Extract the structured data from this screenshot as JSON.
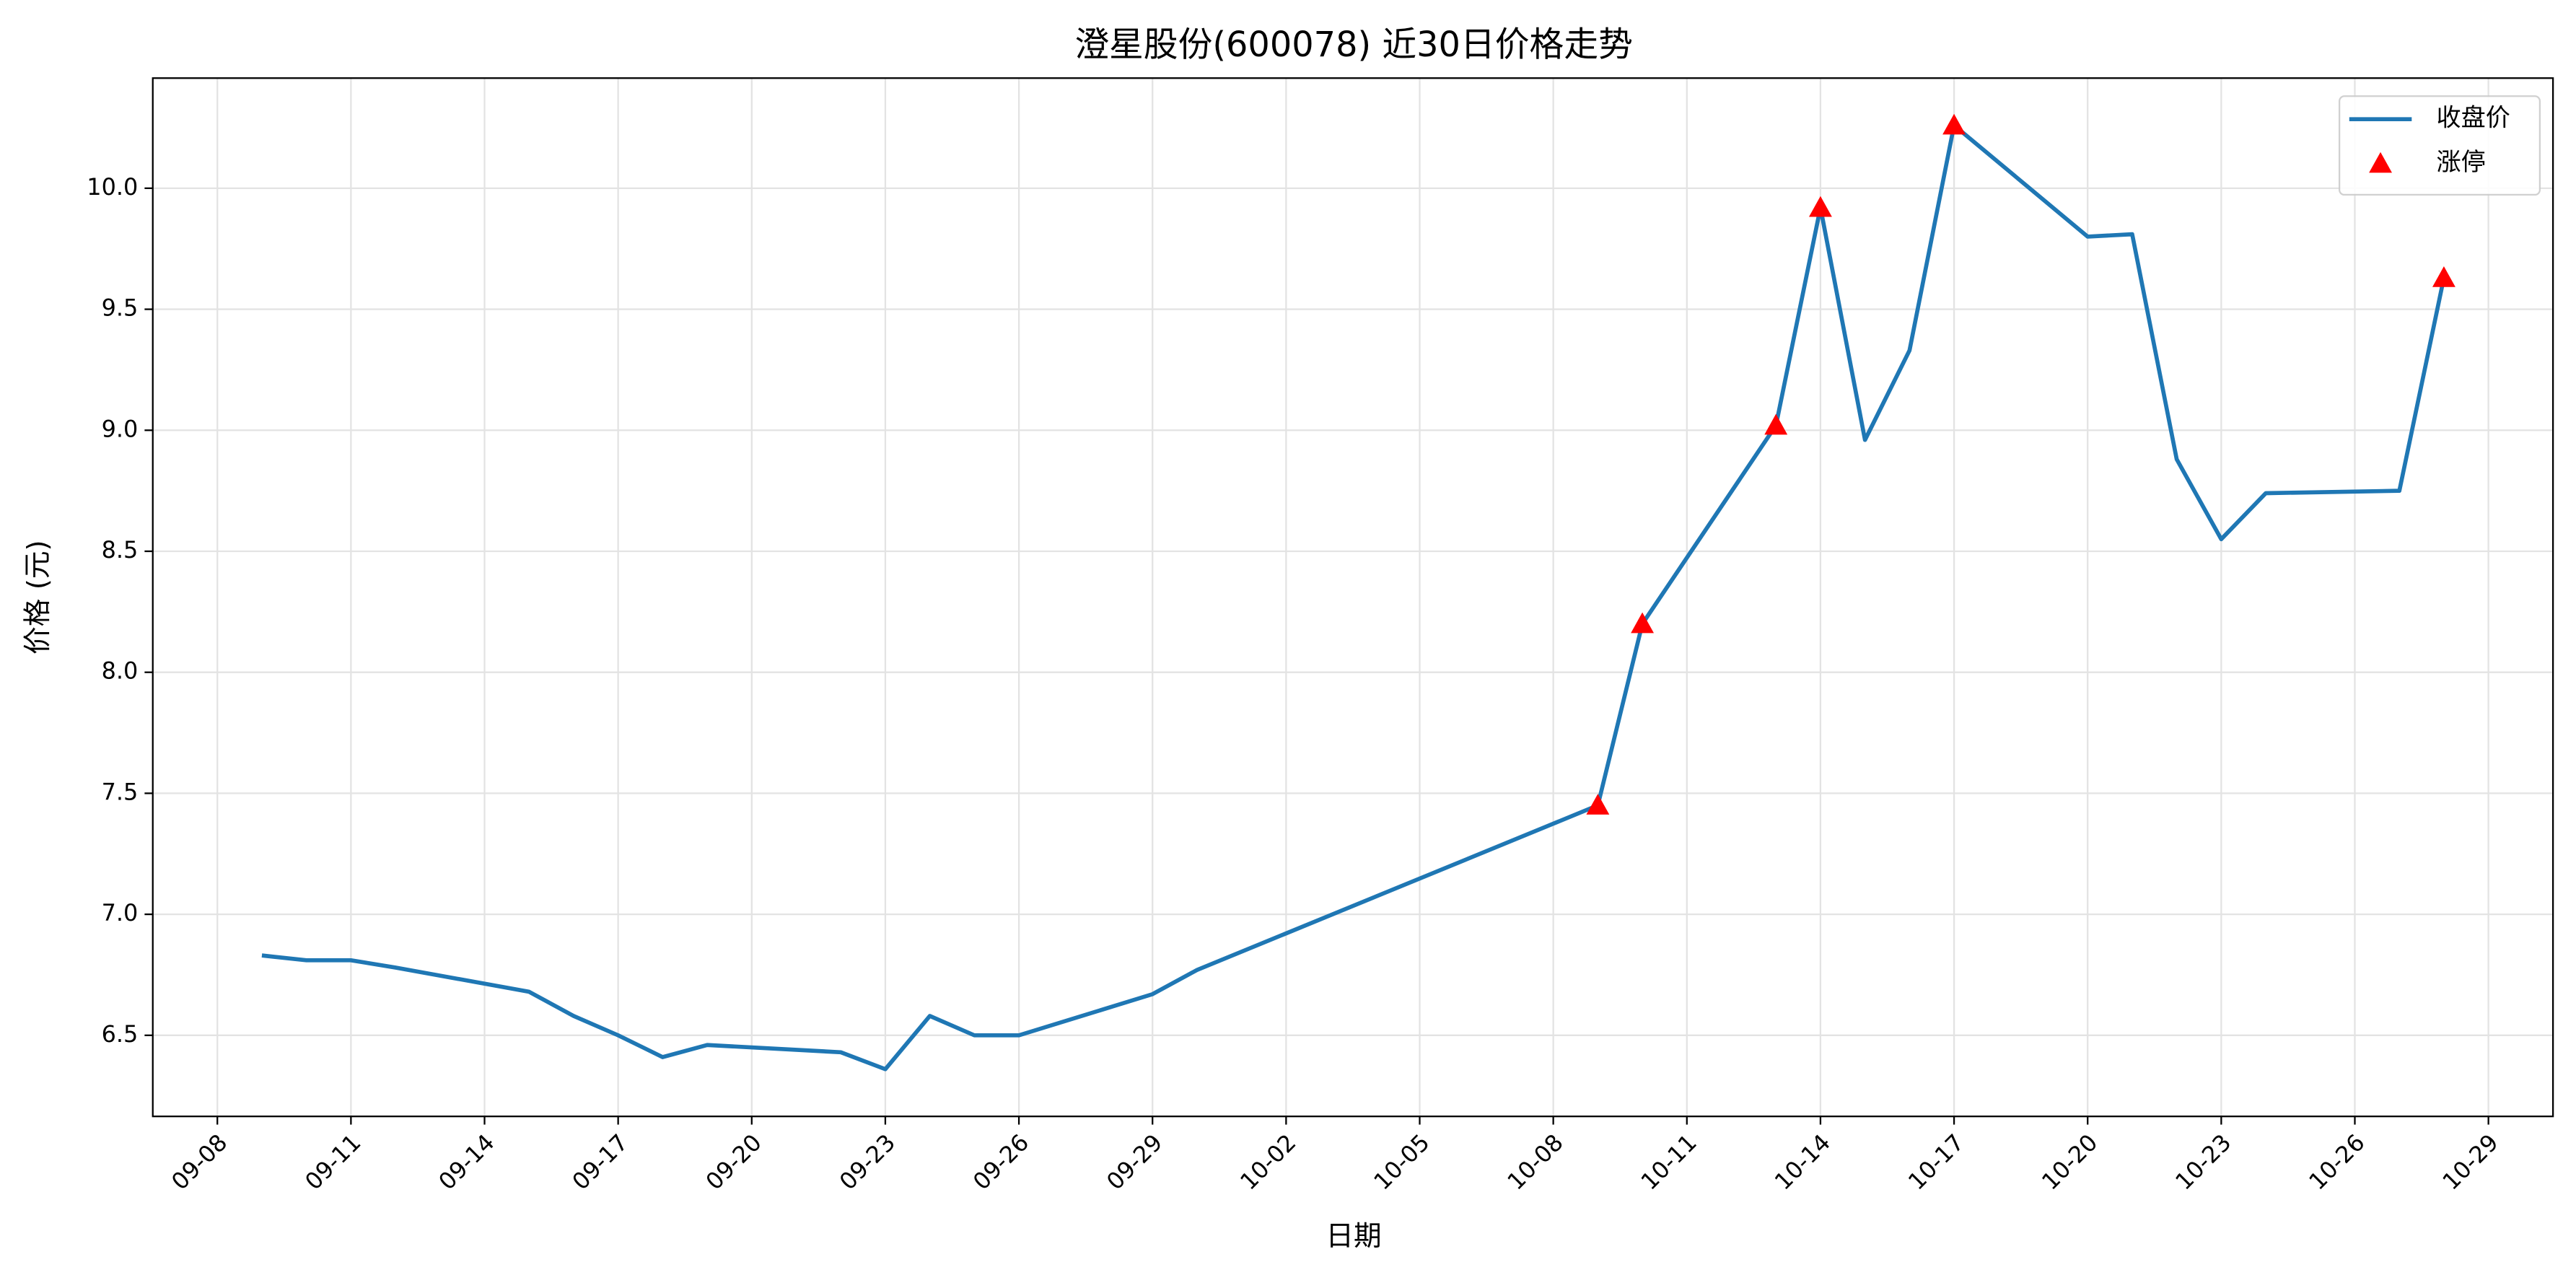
{
  "chart_data": {
    "type": "line",
    "title": "澄星股份(600078) 近30日价格走势",
    "x_label": "日期",
    "y_label": "价格 (元)",
    "x": [
      "09-09",
      "09-10",
      "09-11",
      "09-12",
      "09-15",
      "09-16",
      "09-17",
      "09-18",
      "09-19",
      "09-22",
      "09-23",
      "09-24",
      "09-25",
      "09-26",
      "09-29",
      "09-30",
      "10-09",
      "10-10",
      "10-13",
      "10-14",
      "10-15",
      "10-16",
      "10-17",
      "10-20",
      "10-21",
      "10-22",
      "10-23",
      "10-24",
      "10-27",
      "10-28"
    ],
    "series": [
      {
        "name": "收盘价",
        "type": "line",
        "color": "#1f77b4",
        "values": [
          6.83,
          6.81,
          6.81,
          6.78,
          6.68,
          6.58,
          6.5,
          6.41,
          6.46,
          6.43,
          6.36,
          6.58,
          6.5,
          6.5,
          6.67,
          6.77,
          7.45,
          8.2,
          9.02,
          9.92,
          8.96,
          9.33,
          10.26,
          9.8,
          9.81,
          8.88,
          8.55,
          8.74,
          8.75,
          9.63
        ]
      },
      {
        "name": "涨停",
        "type": "scatter",
        "marker": "triangle",
        "color": "#ff0000",
        "x": [
          "10-09",
          "10-10",
          "10-13",
          "10-14",
          "10-17",
          "10-28"
        ],
        "values": [
          7.45,
          8.2,
          9.02,
          9.92,
          10.26,
          9.63
        ]
      }
    ],
    "xticks": [
      "09-08",
      "09-11",
      "09-14",
      "09-17",
      "09-20",
      "09-23",
      "09-26",
      "09-29",
      "10-02",
      "10-05",
      "10-08",
      "10-11",
      "10-14",
      "10-17",
      "10-20",
      "10-23",
      "10-26",
      "10-29"
    ],
    "ylim": [
      6.165,
      10.455
    ],
    "yticks": [
      6.5,
      {
        "value": 7.0,
        "label": "7.0"
      },
      7.5,
      {
        "value": 8.0,
        "label": "8.0"
      },
      8.5,
      {
        "value": 9.0,
        "label": "9.0"
      },
      9.5,
      {
        "value": 10.0,
        "label": "10.0"
      }
    ],
    "grid": true,
    "legend": "upper right"
  }
}
